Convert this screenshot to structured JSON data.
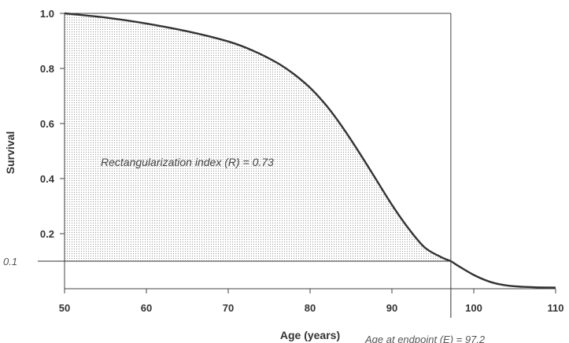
{
  "chart_data": {
    "type": "line",
    "title": "",
    "xlabel": "Age (years)",
    "ylabel": "Survival",
    "xlim": [
      50,
      110
    ],
    "ylim": [
      0.0,
      1.0
    ],
    "x_ticks": [
      "50",
      "60",
      "70",
      "80",
      "90",
      "100",
      "110"
    ],
    "y_ticks": [
      "1.0",
      "0.8",
      "0.6",
      "0.4",
      "0.2"
    ],
    "series": [
      {
        "x": [
          50,
          55,
          60,
          65,
          70,
          73,
          76,
          78,
          80,
          82,
          84,
          86,
          88,
          90,
          92,
          94,
          96,
          97.2,
          98,
          100,
          102,
          104,
          106,
          108,
          110
        ],
        "y": [
          1.0,
          0.985,
          0.963,
          0.935,
          0.898,
          0.865,
          0.82,
          0.78,
          0.73,
          0.665,
          0.585,
          0.495,
          0.4,
          0.305,
          0.22,
          0.15,
          0.115,
          0.1,
          0.085,
          0.05,
          0.025,
          0.012,
          0.007,
          0.005,
          0.004
        ]
      }
    ],
    "reference_line_label": "0.1",
    "reference_line_y": 0.1,
    "endpoint_x": 97.2,
    "annotation_index": "Rectangularization index (R) = 0.73",
    "annotation_endpoint": "Age at endpoint (E) = 97.2",
    "colors": {
      "curve": "#333333",
      "shade": "#999999",
      "axis": "#444444"
    }
  }
}
